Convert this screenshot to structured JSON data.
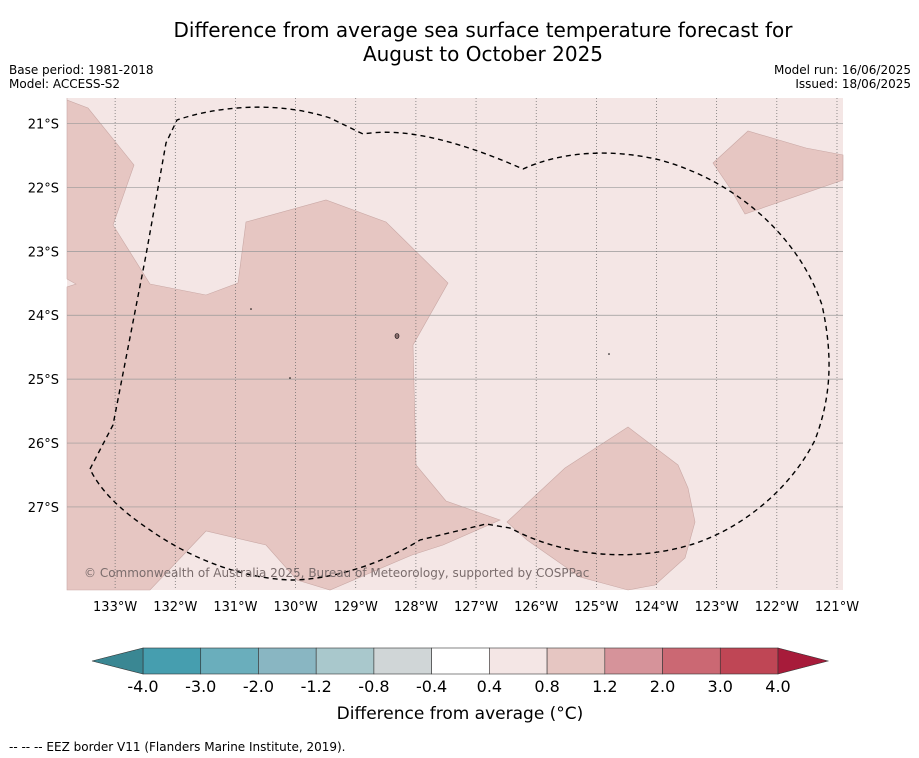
{
  "header": {
    "title_line1": "Difference from average sea surface temperature forecast for",
    "title_line2": "August to October 2025",
    "base_period": "Base period: 1981-2018",
    "model": "Model: ACCESS-S2",
    "model_run": "Model run: 16/06/2025",
    "issued": "Issued: 18/06/2025"
  },
  "map": {
    "lat_labels": [
      "21°S",
      "22°S",
      "23°S",
      "24°S",
      "25°S",
      "26°S",
      "27°S"
    ],
    "lon_labels": [
      "133°W",
      "132°W",
      "131°W",
      "130°W",
      "129°W",
      "128°W",
      "127°W",
      "126°W",
      "125°W",
      "124°W",
      "123°W",
      "122°W",
      "121°W"
    ],
    "extent": {
      "lon_min": -133.8,
      "lon_max": -120.9,
      "lat_min": -28.3,
      "lat_max": -20.6
    },
    "background_class_color": "#f4e6e5",
    "warm_class_color": "#e6c6c2",
    "copyright": "© Commonwealth of Australia 2025, Bureau of Meteorology, supported by COSPPac"
  },
  "colorbar": {
    "tick_labels": [
      "-4.0",
      "-3.0",
      "-2.0",
      "-1.2",
      "-0.8",
      "-0.4",
      "0.4",
      "0.8",
      "1.2",
      "2.0",
      "3.0",
      "4.0"
    ],
    "colors": [
      "#469eaf",
      "#6aaebc",
      "#89b6c2",
      "#a9c8cc",
      "#d0d6d7",
      "#ffffff",
      "#f4e6e5",
      "#e6c6c2",
      "#d6939a",
      "#cb6873",
      "#bf4655"
    ],
    "under_color": "#3a8793",
    "over_color": "#a71b3a",
    "label": "Difference from average (°C)"
  },
  "footnote": "--  --  -- EEZ border V11 (Flanders Marine Institute, 2019)."
}
